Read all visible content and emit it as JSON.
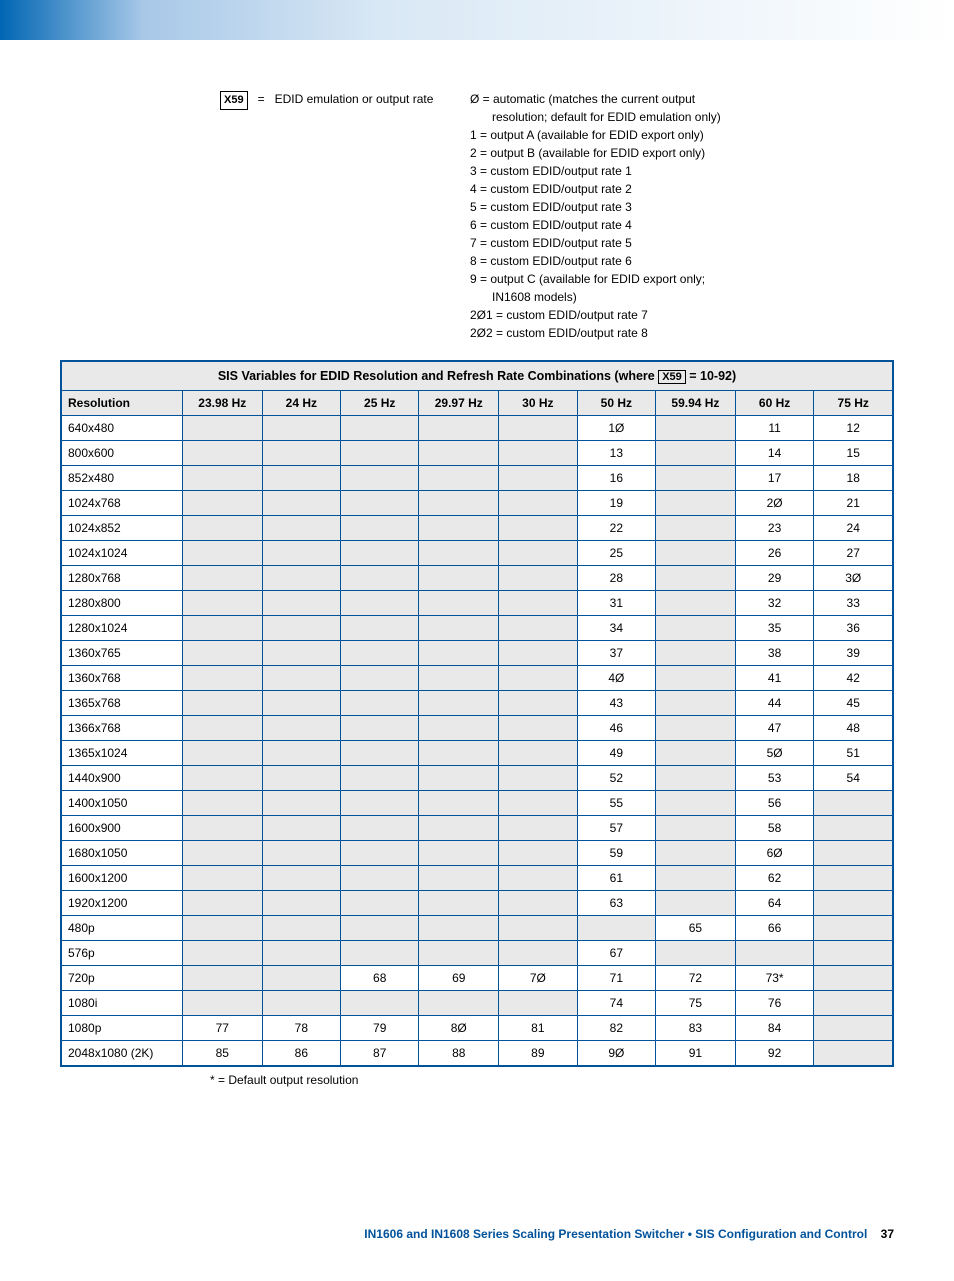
{
  "definitions": {
    "left": {
      "symbol": "X59",
      "eq": "=",
      "text": "EDID emulation or output rate"
    },
    "right": [
      {
        "k": "Ø",
        "t": "automatic (matches the current output"
      },
      {
        "indent": true,
        "t": "resolution; default for EDID emulation only)"
      },
      {
        "k": "1",
        "t": "output A (available for EDID export only)"
      },
      {
        "k": "2",
        "t": "output B (available for EDID export only)"
      },
      {
        "k": "3",
        "t": "custom EDID/output rate 1"
      },
      {
        "k": "4",
        "t": "custom EDID/output rate 2"
      },
      {
        "k": "5",
        "t": "custom EDID/output rate 3"
      },
      {
        "k": "6",
        "t": "custom EDID/output rate 4"
      },
      {
        "k": "7",
        "t": "custom EDID/output rate 5"
      },
      {
        "k": "8",
        "t": "custom EDID/output rate 6"
      },
      {
        "k": "9",
        "t": "output C (available for EDID export only;"
      },
      {
        "indent": true,
        "t": "IN1608 models)"
      },
      {
        "k": "2Ø1",
        "t": "custom EDID/output rate 7"
      },
      {
        "k": "2Ø2",
        "t": "custom EDID/output rate 8"
      }
    ]
  },
  "table": {
    "title_pre": "SIS Variables for EDID Resolution and Refresh Rate Combinations (where ",
    "title_sym": "X59",
    "title_post": " = 10-92)",
    "columns": [
      "Resolution",
      "23.98 Hz",
      "24 Hz",
      "25 Hz",
      "29.97 Hz",
      "30 Hz",
      "50 Hz",
      "59.94 Hz",
      "60 Hz",
      "75 Hz"
    ],
    "rows": [
      {
        "res": "640x480",
        "c": [
          "",
          "",
          "",
          "",
          "",
          "1Ø",
          "",
          "11",
          "12"
        ]
      },
      {
        "res": "800x600",
        "c": [
          "",
          "",
          "",
          "",
          "",
          "13",
          "",
          "14",
          "15"
        ]
      },
      {
        "res": "852x480",
        "c": [
          "",
          "",
          "",
          "",
          "",
          "16",
          "",
          "17",
          "18"
        ]
      },
      {
        "res": "1024x768",
        "c": [
          "",
          "",
          "",
          "",
          "",
          "19",
          "",
          "2Ø",
          "21"
        ]
      },
      {
        "res": "1024x852",
        "c": [
          "",
          "",
          "",
          "",
          "",
          "22",
          "",
          "23",
          "24"
        ]
      },
      {
        "res": "1024x1024",
        "c": [
          "",
          "",
          "",
          "",
          "",
          "25",
          "",
          "26",
          "27"
        ]
      },
      {
        "res": "1280x768",
        "c": [
          "",
          "",
          "",
          "",
          "",
          "28",
          "",
          "29",
          "3Ø"
        ]
      },
      {
        "res": "1280x800",
        "c": [
          "",
          "",
          "",
          "",
          "",
          "31",
          "",
          "32",
          "33"
        ]
      },
      {
        "res": "1280x1024",
        "c": [
          "",
          "",
          "",
          "",
          "",
          "34",
          "",
          "35",
          "36"
        ]
      },
      {
        "res": "1360x765",
        "c": [
          "",
          "",
          "",
          "",
          "",
          "37",
          "",
          "38",
          "39"
        ]
      },
      {
        "res": "1360x768",
        "c": [
          "",
          "",
          "",
          "",
          "",
          "4Ø",
          "",
          "41",
          "42"
        ]
      },
      {
        "res": "1365x768",
        "c": [
          "",
          "",
          "",
          "",
          "",
          "43",
          "",
          "44",
          "45"
        ]
      },
      {
        "res": "1366x768",
        "c": [
          "",
          "",
          "",
          "",
          "",
          "46",
          "",
          "47",
          "48"
        ]
      },
      {
        "res": "1365x1024",
        "c": [
          "",
          "",
          "",
          "",
          "",
          "49",
          "",
          "5Ø",
          "51"
        ]
      },
      {
        "res": "1440x900",
        "c": [
          "",
          "",
          "",
          "",
          "",
          "52",
          "",
          "53",
          "54"
        ]
      },
      {
        "res": "1400x1050",
        "c": [
          "",
          "",
          "",
          "",
          "",
          "55",
          "",
          "56",
          ""
        ]
      },
      {
        "res": "1600x900",
        "c": [
          "",
          "",
          "",
          "",
          "",
          "57",
          "",
          "58",
          ""
        ]
      },
      {
        "res": "1680x1050",
        "c": [
          "",
          "",
          "",
          "",
          "",
          "59",
          "",
          "6Ø",
          ""
        ]
      },
      {
        "res": "1600x1200",
        "c": [
          "",
          "",
          "",
          "",
          "",
          "61",
          "",
          "62",
          ""
        ]
      },
      {
        "res": "1920x1200",
        "c": [
          "",
          "",
          "",
          "",
          "",
          "63",
          "",
          "64",
          ""
        ]
      },
      {
        "res": "480p",
        "c": [
          "",
          "",
          "",
          "",
          "",
          "",
          "65",
          "66",
          ""
        ]
      },
      {
        "res": "576p",
        "c": [
          "",
          "",
          "",
          "",
          "",
          "67",
          "",
          "",
          ""
        ]
      },
      {
        "res": "720p",
        "c": [
          "",
          "",
          "68",
          "69",
          "7Ø",
          "71",
          "72",
          "73*",
          ""
        ]
      },
      {
        "res": "1080i",
        "c": [
          "",
          "",
          "",
          "",
          "",
          "74",
          "75",
          "76",
          ""
        ]
      },
      {
        "res": "1080p",
        "c": [
          "77",
          "78",
          "79",
          "8Ø",
          "81",
          "82",
          "83",
          "84",
          ""
        ]
      },
      {
        "res": "2048x1080 (2K)",
        "c": [
          "85",
          "86",
          "87",
          "88",
          "89",
          "9Ø",
          "91",
          "92",
          ""
        ]
      }
    ]
  },
  "footnote": "* = Default output resolution",
  "footer": {
    "text": "IN1606 and IN1608 Series Scaling Presentation Switcher • SIS Configuration and Control",
    "page": "37"
  }
}
